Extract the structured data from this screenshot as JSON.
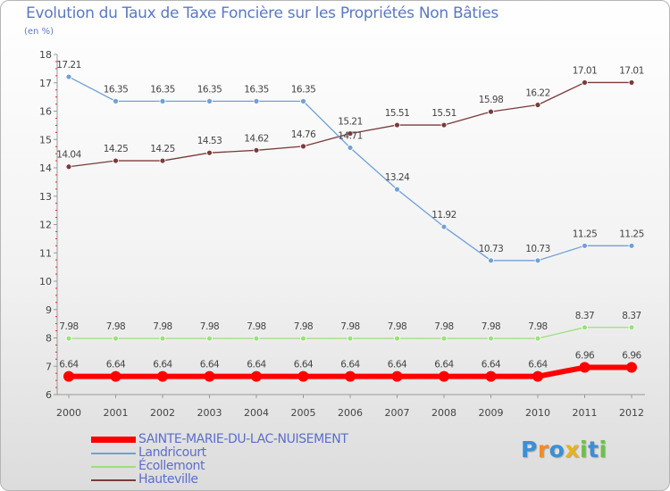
{
  "chart_data": {
    "type": "line",
    "title": "Evolution du Taux de Taxe Foncière sur les Propriétés Non Bâties",
    "unit_label": "(en %)",
    "xlabel": "",
    "ylabel": "(en %)",
    "ylim": [
      6,
      18
    ],
    "yticks": [
      "6",
      "7",
      "8",
      "9",
      "10",
      "11",
      "12",
      "13",
      "14",
      "15",
      "16",
      "17",
      "18"
    ],
    "categories": [
      "2000",
      "2001",
      "2002",
      "2003",
      "2004",
      "2005",
      "2006",
      "2007",
      "2008",
      "2009",
      "2010",
      "2011",
      "2012"
    ],
    "grid": false,
    "legend_position": "bottom-left",
    "series": [
      {
        "name": "Hauteville",
        "color": "#7a3b3b",
        "labels": [
          "14.04",
          "14.25",
          "14.25",
          "14.53",
          "14.62",
          "14.76",
          "15.21",
          "15.51",
          "15.51",
          "15.98",
          "16.22",
          "17.01",
          "17.01"
        ],
        "values": [
          14.04,
          14.25,
          14.25,
          14.53,
          14.62,
          14.76,
          15.21,
          15.51,
          15.51,
          15.98,
          16.22,
          17.01,
          17.01
        ]
      },
      {
        "name": "Landricourt",
        "color": "#6fa0d8",
        "labels": [
          "17.21",
          "16.35",
          "16.35",
          "16.35",
          "16.35",
          "16.35",
          "14.71",
          "13.24",
          "11.92",
          "10.73",
          "10.73",
          "11.25",
          "11.25"
        ],
        "values": [
          17.21,
          16.35,
          16.35,
          16.35,
          16.35,
          16.35,
          14.71,
          13.24,
          11.92,
          10.73,
          10.73,
          11.25,
          11.25
        ]
      },
      {
        "name": "Écollemont",
        "color": "#9be07a",
        "labels": [
          "7.98",
          "7.98",
          "7.98",
          "7.98",
          "7.98",
          "7.98",
          "7.98",
          "7.98",
          "7.98",
          "7.98",
          "7.98",
          "8.37",
          "8.37"
        ],
        "values": [
          7.98,
          7.98,
          7.98,
          7.98,
          7.98,
          7.98,
          7.98,
          7.98,
          7.98,
          7.98,
          7.98,
          8.37,
          8.37
        ]
      },
      {
        "name": "SAINTE-MARIE-DU-LAC-NUISEMENT",
        "color": "#ff0000",
        "labels": [
          "6.64",
          "6.64",
          "6.64",
          "6.64",
          "6.64",
          "6.64",
          "6.64",
          "6.64",
          "6.64",
          "6.64",
          "6.64",
          "6.96",
          "6.96"
        ],
        "values": [
          6.64,
          6.64,
          6.64,
          6.64,
          6.64,
          6.64,
          6.64,
          6.64,
          6.64,
          6.64,
          6.64,
          6.96,
          6.96
        ]
      }
    ],
    "legend": [
      "SAINTE-MARIE-DU-LAC-NUISEMENT",
      "Landricourt",
      "Écollemont",
      "Hauteville"
    ]
  },
  "brand": {
    "name": "Proxiti",
    "letters": [
      "P",
      "r",
      "o",
      "x",
      "i",
      "t",
      "i"
    ],
    "colors": [
      "#3b8fd6",
      "#f28c28",
      "#3b8fd6",
      "#e8b21e",
      "#6cc04a",
      "#3b8fd6",
      "#6cc04a"
    ]
  }
}
